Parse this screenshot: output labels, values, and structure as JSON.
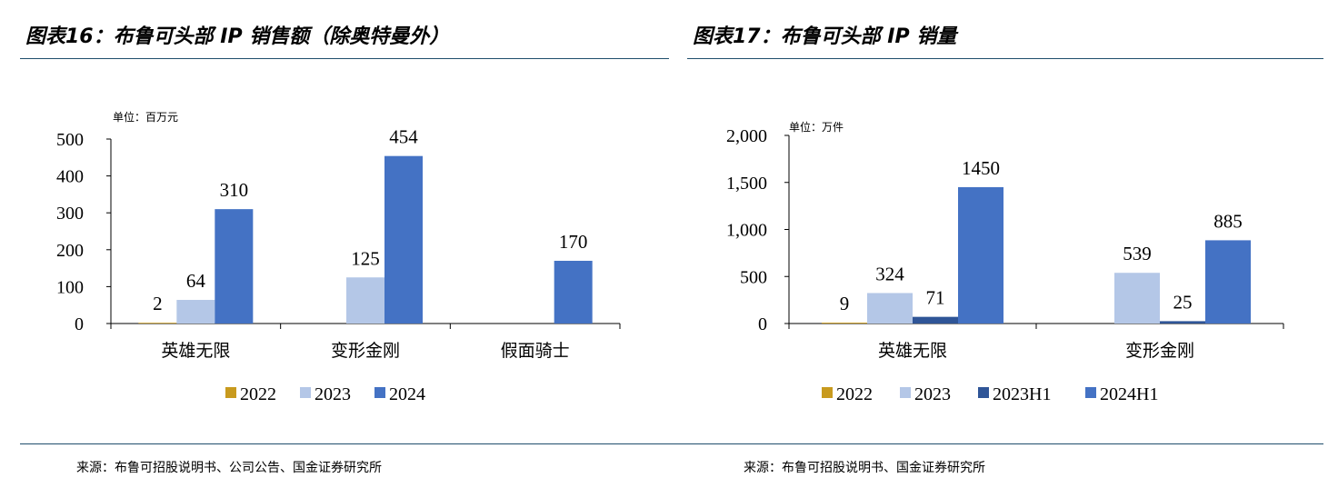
{
  "colors": {
    "s2022": "#c89a1e",
    "s2023": "#b4c7e7",
    "s2024": "#4472c4",
    "s2023H1": "#2f5597",
    "s2024H1": "#4472c4",
    "axis": "#000000",
    "rule": "#1f4e6b"
  },
  "left": {
    "title": "图表16：布鲁可头部 IP 销售额（除奥特曼外）",
    "unit": "单位：百万元",
    "source": "来源：布鲁可招股说明书、公司公告、国金证券研究所"
  },
  "right": {
    "title": "图表17：布鲁可头部 IP 销量",
    "unit": "单位：万件",
    "source": "来源：布鲁可招股说明书、国金证券研究所"
  },
  "chart_data": [
    {
      "type": "bar",
      "title": "图表16：布鲁可头部 IP 销售额（除奥特曼外）",
      "ylabel": "单位：百万元",
      "ylim": [
        0,
        500
      ],
      "yticks": [
        "0",
        "100",
        "200",
        "300",
        "400",
        "500"
      ],
      "categories": [
        "英雄无限",
        "变形金刚",
        "假面骑士"
      ],
      "legend_position": "bottom",
      "grid": false,
      "series": [
        {
          "name": "2022",
          "color_key": "s2022",
          "values": [
            2,
            null,
            null
          ],
          "labels": [
            "2",
            "",
            ""
          ]
        },
        {
          "name": "2023",
          "color_key": "s2023",
          "values": [
            64,
            125,
            null
          ],
          "labels": [
            "64",
            "125",
            ""
          ]
        },
        {
          "name": "2024",
          "color_key": "s2024",
          "values": [
            310,
            454,
            170
          ],
          "labels": [
            "310",
            "454",
            "170"
          ]
        }
      ]
    },
    {
      "type": "bar",
      "title": "图表17：布鲁可头部 IP 销量",
      "ylabel": "单位：万件",
      "ylim": [
        0,
        2000
      ],
      "yticks": [
        "0",
        "500",
        "1,000",
        "1,500",
        "2,000"
      ],
      "categories": [
        "英雄无限",
        "变形金刚"
      ],
      "legend_position": "bottom",
      "grid": false,
      "series": [
        {
          "name": "2022",
          "color_key": "s2022",
          "values": [
            9,
            null
          ],
          "labels": [
            "9",
            ""
          ]
        },
        {
          "name": "2023",
          "color_key": "s2023",
          "values": [
            324,
            539
          ],
          "labels": [
            "324",
            "539"
          ]
        },
        {
          "name": "2023H1",
          "color_key": "s2023H1",
          "values": [
            71,
            25
          ],
          "labels": [
            "71",
            "25"
          ]
        },
        {
          "name": "2024H1",
          "color_key": "s2024H1",
          "values": [
            1450,
            885
          ],
          "labels": [
            "1450",
            "885"
          ]
        }
      ]
    }
  ]
}
